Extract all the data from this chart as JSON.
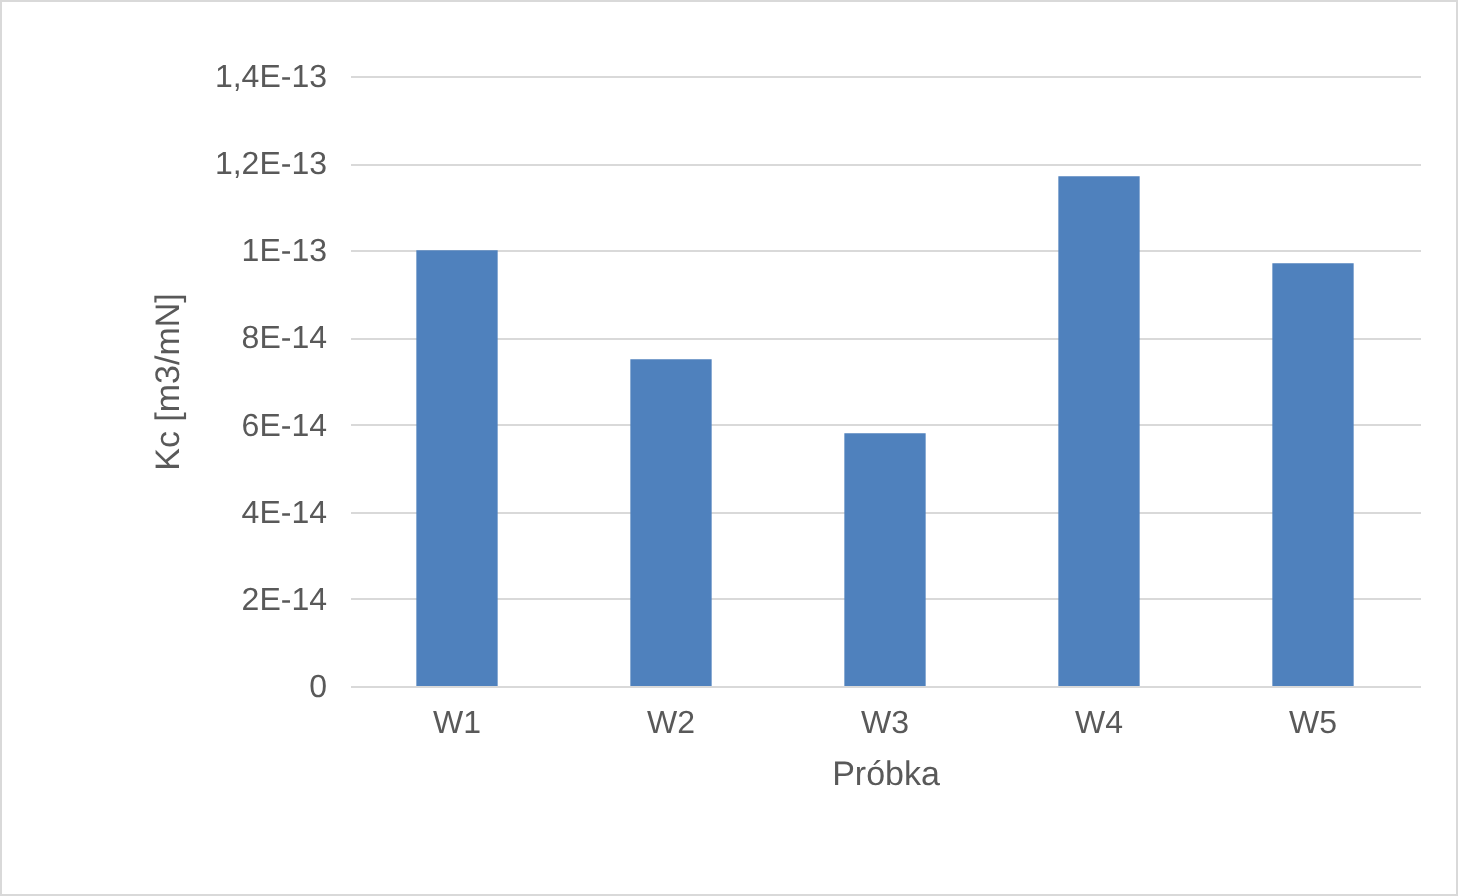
{
  "chart_data": {
    "type": "bar",
    "xlabel": "Próbka",
    "ylabel": "Kc [m3/mN]",
    "categories": [
      "W1",
      "W2",
      "W3",
      "W4",
      "W5"
    ],
    "values": [
      1e-13,
      7.5e-14,
      5.8e-14,
      1.17e-13,
      9.7e-14
    ],
    "color": "#4f81bd",
    "ylim": [
      0,
      1.4e-13
    ],
    "yticks": [
      0,
      {
        "value": 2e-14,
        "label": "2E-14"
      },
      {
        "value": 4e-14,
        "label": "4E-14"
      },
      {
        "value": 6e-14,
        "label": "6E-14"
      },
      {
        "value": 8e-14,
        "label": "8E-14"
      },
      {
        "value": 1e-13,
        "label": "1E-13"
      },
      {
        "value": 1.2e-13,
        "label": "1,2E-13"
      },
      {
        "value": 1.4e-13,
        "label": "1,4E-13"
      }
    ],
    "grid": "y"
  }
}
